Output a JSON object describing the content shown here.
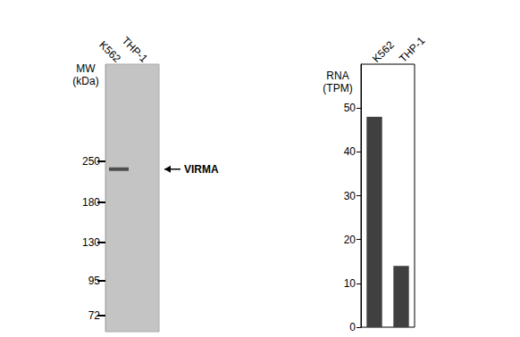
{
  "chart_data": [
    {
      "type": "blot",
      "categories": [
        "K562",
        "THP-1"
      ],
      "y_label": "MW (kDa)",
      "log": "y",
      "ylim": [
        63,
        550
      ],
      "yticks": [
        72,
        95,
        130,
        180,
        250
      ],
      "values": [
        235,
        null
      ],
      "annotation": "VIRMA",
      "color": "#3a3a3a"
    },
    {
      "type": "bar",
      "categories": [
        "K562",
        "THP-1"
      ],
      "y_label": "RNA (TPM)",
      "values": [
        48,
        14
      ],
      "ylim": [
        0,
        60
      ],
      "yticks": [
        0,
        10,
        20,
        30,
        40,
        50
      ],
      "color": "#404040"
    }
  ]
}
